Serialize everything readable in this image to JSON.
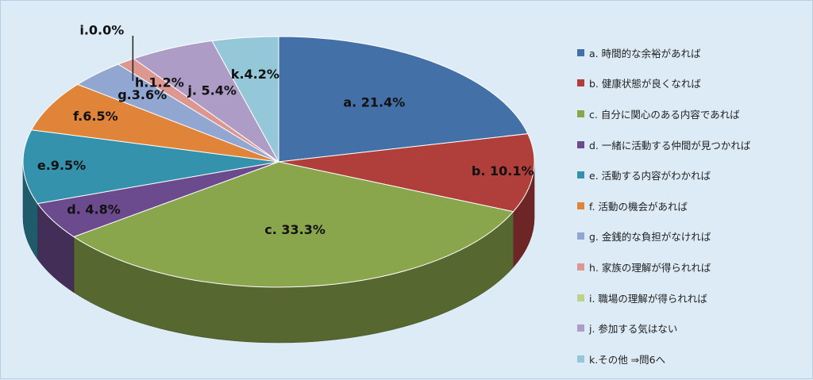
{
  "chart_data": {
    "type": "pie",
    "style": "3d-exploded-free",
    "slices": [
      {
        "key": "a",
        "label": "a. 21.4%",
        "legend": "a. 時間的な余裕があれば",
        "value": 21.4,
        "color": "#4470a8"
      },
      {
        "key": "b",
        "label": "b. 10.1%",
        "legend": "b. 健康状態が良くなれば",
        "value": 10.1,
        "color": "#b03e3b"
      },
      {
        "key": "c",
        "label": "c. 33.3%",
        "legend": "c. 自分に関心のある内容であれば",
        "value": 33.3,
        "color": "#8aa64c"
      },
      {
        "key": "d",
        "label": "d. 4.8%",
        "legend": "d. 一緒に活動する仲間が見つかれば",
        "value": 4.8,
        "color": "#6c4a8e"
      },
      {
        "key": "e",
        "label": "e.9.5%",
        "legend": "e. 活動する内容がわかれば",
        "value": 9.5,
        "color": "#3492ac"
      },
      {
        "key": "f",
        "label": "f.6.5%",
        "legend": "f. 活動の機会があれば",
        "value": 6.5,
        "color": "#e0843a"
      },
      {
        "key": "g",
        "label": "g.3.6%",
        "legend": "g. 金銭的な負担がなければ",
        "value": 3.6,
        "color": "#91a6d1"
      },
      {
        "key": "h",
        "label": "h.1.2%",
        "legend": "h. 家族の理解が得られれば",
        "value": 1.2,
        "color": "#dd9791"
      },
      {
        "key": "i",
        "label": "i.0.0%",
        "legend": "i. 職場の理解が得られれば",
        "value": 0.0,
        "color": "#bfd18e"
      },
      {
        "key": "j",
        "label": "j. 5.4%",
        "legend": "j. 参加する気はない",
        "value": 5.4,
        "color": "#ad9cc5"
      },
      {
        "key": "k",
        "label": "k.4.2%",
        "legend": "k.その他 ⇒問6へ",
        "value": 4.2,
        "color": "#94c7d8"
      }
    ],
    "legend_position": "right"
  }
}
